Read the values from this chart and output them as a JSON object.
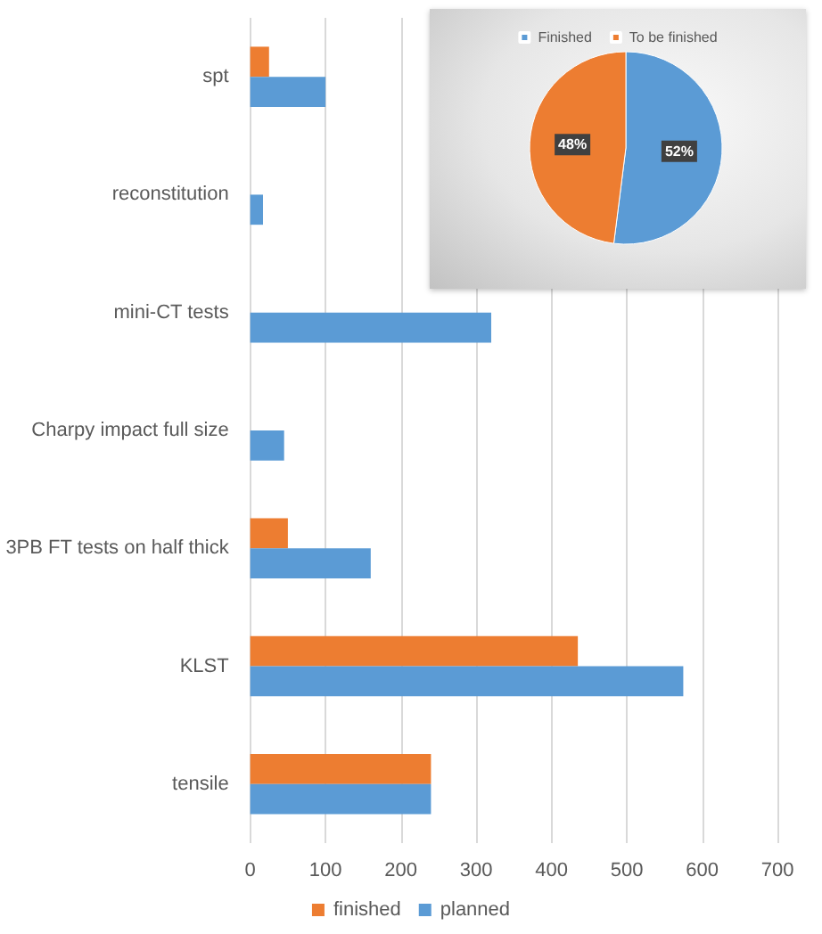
{
  "chart_data": [
    {
      "type": "bar",
      "orientation": "horizontal",
      "categories": [
        "spt",
        "reconstitution",
        "mini-CT tests",
        "Charpy impact full size",
        "3PB FT tests on half thick",
        "KLST",
        "tensile"
      ],
      "series": [
        {
          "name": "finished",
          "color": "#ed7d31",
          "values": [
            25,
            null,
            null,
            null,
            50,
            435,
            240
          ]
        },
        {
          "name": "planned",
          "color": "#5b9bd5",
          "values": [
            100,
            17,
            320,
            45,
            160,
            575,
            240
          ]
        }
      ],
      "xlim": [
        0,
        700
      ],
      "xticks": [
        0,
        100,
        200,
        300,
        400,
        500,
        600,
        700
      ],
      "grid": "x",
      "legend": "bottom"
    },
    {
      "type": "pie",
      "categories": [
        "Finished",
        "To be finished"
      ],
      "values": [
        52,
        48
      ],
      "colors": [
        "#5b9bd5",
        "#ed7d31"
      ],
      "value_labels": [
        "52%",
        "48%"
      ],
      "legend": "top"
    }
  ]
}
